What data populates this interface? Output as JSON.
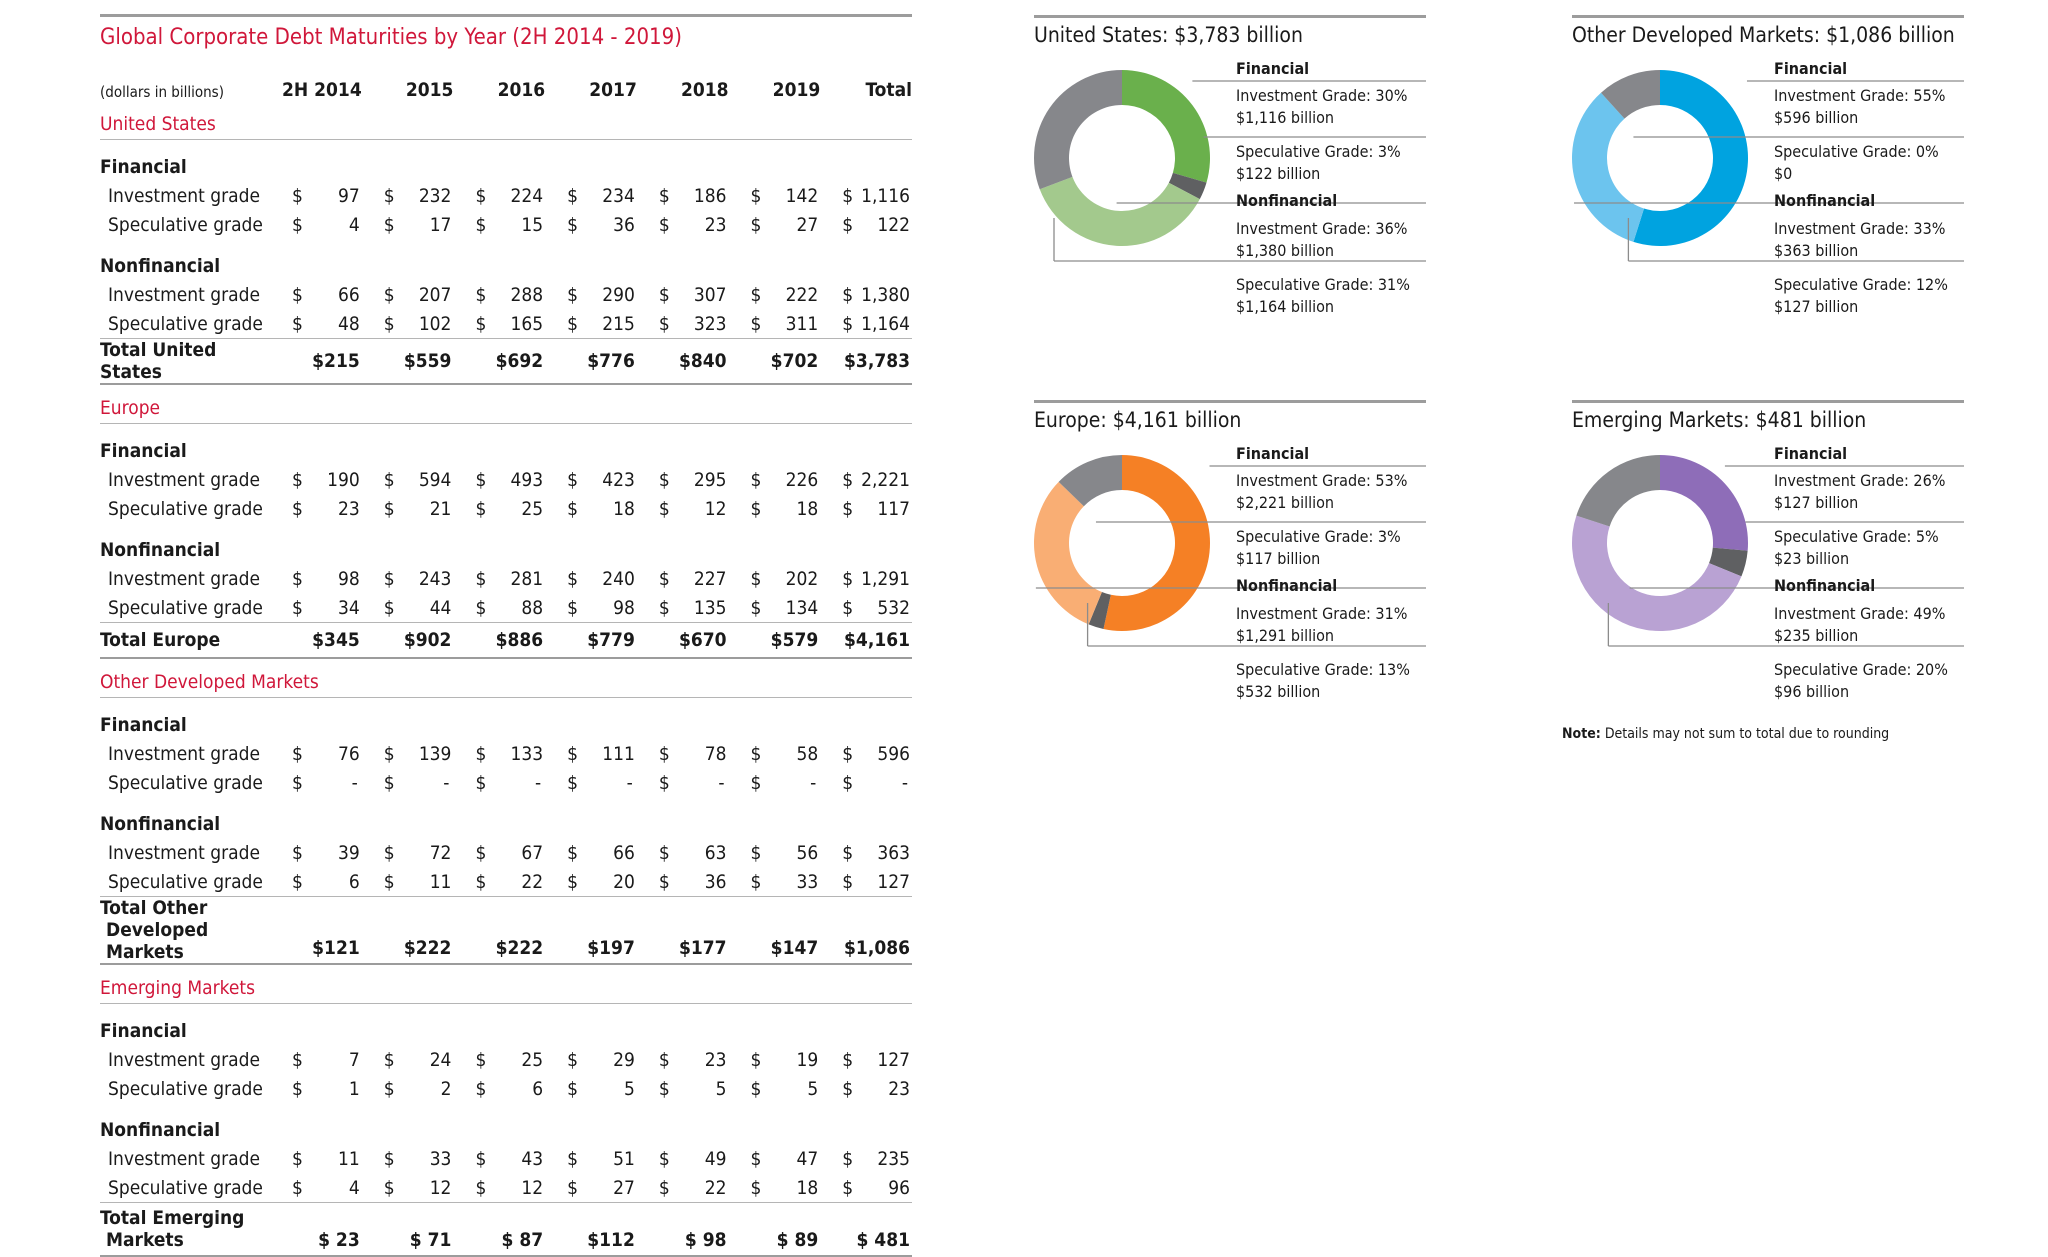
{
  "table": {
    "title": "Global Corporate Debt Maturities by Year (2H 2014 - 2019)",
    "unit_label": "(dollars in billions)",
    "columns": [
      "2H 2014",
      "2015",
      "2016",
      "2017",
      "2018",
      "2019",
      "Total"
    ],
    "currency_symbol": "$",
    "regions": [
      {
        "name": "United States",
        "groups": [
          {
            "name": "Financial",
            "rows": [
              {
                "label": "Investment grade",
                "values": [
                  "97",
                  "232",
                  "224",
                  "234",
                  "186",
                  "142",
                  "1,116"
                ]
              },
              {
                "label": "Speculative grade",
                "values": [
                  "4",
                  "17",
                  "15",
                  "36",
                  "23",
                  "27",
                  "122"
                ]
              }
            ]
          },
          {
            "name": "Nonfinancial",
            "rows": [
              {
                "label": "Investment grade",
                "values": [
                  "66",
                  "207",
                  "288",
                  "290",
                  "307",
                  "222",
                  "1,380"
                ]
              },
              {
                "label": "Speculative grade",
                "values": [
                  "48",
                  "102",
                  "165",
                  "215",
                  "323",
                  "311",
                  "1,164"
                ]
              }
            ]
          }
        ],
        "total_label": [
          "Total United States"
        ],
        "totals": [
          "$215",
          "$559",
          "$692",
          "$776",
          "$840",
          "$702",
          "$3,783"
        ]
      },
      {
        "name": "Europe",
        "groups": [
          {
            "name": "Financial",
            "rows": [
              {
                "label": "Investment grade",
                "values": [
                  "190",
                  "594",
                  "493",
                  "423",
                  "295",
                  "226",
                  "2,221"
                ]
              },
              {
                "label": "Speculative grade",
                "values": [
                  "23",
                  "21",
                  "25",
                  "18",
                  "12",
                  "18",
                  "117"
                ]
              }
            ]
          },
          {
            "name": "Nonfinancial",
            "rows": [
              {
                "label": "Investment grade",
                "values": [
                  "98",
                  "243",
                  "281",
                  "240",
                  "227",
                  "202",
                  "1,291"
                ]
              },
              {
                "label": "Speculative grade",
                "values": [
                  "34",
                  "44",
                  "88",
                  "98",
                  "135",
                  "134",
                  "532"
                ]
              }
            ]
          }
        ],
        "total_label": [
          "Total Europe"
        ],
        "totals": [
          "$345",
          "$902",
          "$886",
          "$779",
          "$670",
          "$579",
          "$4,161"
        ]
      },
      {
        "name": "Other Developed Markets",
        "groups": [
          {
            "name": "Financial",
            "rows": [
              {
                "label": "Investment grade",
                "values": [
                  "76",
                  "139",
                  "133",
                  "111",
                  "78",
                  "58",
                  "596"
                ]
              },
              {
                "label": "Speculative grade",
                "values": [
                  "-",
                  "-",
                  "-",
                  "-",
                  "-",
                  "-",
                  "-"
                ]
              }
            ]
          },
          {
            "name": "Nonfinancial",
            "rows": [
              {
                "label": "Investment grade",
                "values": [
                  "39",
                  "72",
                  "67",
                  "66",
                  "63",
                  "56",
                  "363"
                ]
              },
              {
                "label": "Speculative grade",
                "values": [
                  "6",
                  "11",
                  "22",
                  "20",
                  "36",
                  "33",
                  "127"
                ]
              }
            ]
          }
        ],
        "total_label": [
          "Total Other",
          "Developed Markets"
        ],
        "totals": [
          "$121",
          "$222",
          "$222",
          "$197",
          "$177",
          "$147",
          "$1,086"
        ]
      },
      {
        "name": "Emerging Markets",
        "groups": [
          {
            "name": "Financial",
            "rows": [
              {
                "label": "Investment grade",
                "values": [
                  "7",
                  "24",
                  "25",
                  "29",
                  "23",
                  "19",
                  "127"
                ]
              },
              {
                "label": "Speculative grade",
                "values": [
                  "1",
                  "2",
                  "6",
                  "5",
                  "5",
                  "5",
                  "23"
                ]
              }
            ]
          },
          {
            "name": "Nonfinancial",
            "rows": [
              {
                "label": "Investment grade",
                "values": [
                  "11",
                  "33",
                  "43",
                  "51",
                  "49",
                  "47",
                  "235"
                ]
              },
              {
                "label": "Speculative grade",
                "values": [
                  "4",
                  "12",
                  "12",
                  "27",
                  "22",
                  "18",
                  "96"
                ]
              }
            ]
          }
        ],
        "total_label": [
          "Total Emerging",
          "Markets"
        ],
        "totals": [
          "$ 23",
          "$ 71",
          "$ 87",
          "$112",
          "$ 98",
          "$ 89",
          "$ 481"
        ]
      }
    ]
  },
  "chart_data": [
    {
      "type": "pie",
      "title": "United States: $3,783 billion",
      "financial_label": "Financial",
      "nonfinancial_label": "Nonfinancial",
      "slices": [
        {
          "label": "Investment Grade: 30%",
          "amount": "$1,116 billion",
          "value": 1116,
          "color": "#6ab04c"
        },
        {
          "label": "Speculative Grade: 3%",
          "amount": "$122 billion",
          "value": 122,
          "color": "#5f6062"
        },
        {
          "label": "Investment Grade: 36%",
          "amount": "$1,380 billion",
          "value": 1380,
          "color": "#a3c98d"
        },
        {
          "label": "Speculative Grade: 31%",
          "amount": "$1,164 billion",
          "value": 1164,
          "color": "#86878b"
        }
      ]
    },
    {
      "type": "pie",
      "title": "Other Developed Markets: $1,086 billion",
      "financial_label": "Financial",
      "nonfinancial_label": "Nonfinancial",
      "slices": [
        {
          "label": "Investment Grade: 55%",
          "amount": "$596 billion",
          "value": 596,
          "color": "#00a3e0"
        },
        {
          "label": "Speculative Grade: 0%",
          "amount": "$0",
          "value": 0,
          "color": "#5f6062"
        },
        {
          "label": "Investment Grade: 33%",
          "amount": "$363 billion",
          "value": 363,
          "color": "#6cc4ee"
        },
        {
          "label": "Speculative Grade: 12%",
          "amount": "$127 billion",
          "value": 127,
          "color": "#86878b"
        }
      ]
    },
    {
      "type": "pie",
      "title": "Europe: $4,161 billion",
      "financial_label": "Financial",
      "nonfinancial_label": "Nonfinancial",
      "slices": [
        {
          "label": "Investment Grade: 53%",
          "amount": "$2,221 billion",
          "value": 2221,
          "color": "#f58025"
        },
        {
          "label": "Speculative Grade: 3%",
          "amount": "$117 billion",
          "value": 117,
          "color": "#5f6062"
        },
        {
          "label": "Investment Grade: 31%",
          "amount": "$1,291 billion",
          "value": 1291,
          "color": "#f9ae74"
        },
        {
          "label": "Speculative Grade: 13%",
          "amount": "$532 billion",
          "value": 532,
          "color": "#86878b"
        }
      ]
    },
    {
      "type": "pie",
      "title": "Emerging Markets: $481 billion",
      "financial_label": "Financial",
      "nonfinancial_label": "Nonfinancial",
      "slices": [
        {
          "label": "Investment Grade: 26%",
          "amount": "$127 billion",
          "value": 127,
          "color": "#8e6db8"
        },
        {
          "label": "Speculative Grade: 5%",
          "amount": "$23 billion",
          "value": 23,
          "color": "#5f6062"
        },
        {
          "label": "Investment Grade: 49%",
          "amount": "$235 billion",
          "value": 235,
          "color": "#b9a2d3"
        },
        {
          "label": "Speculative Grade: 20%",
          "amount": "$96 billion",
          "value": 96,
          "color": "#86878b"
        }
      ]
    }
  ],
  "note": {
    "prefix": "Note:",
    "text": "Details may not sum to total due to rounding"
  }
}
